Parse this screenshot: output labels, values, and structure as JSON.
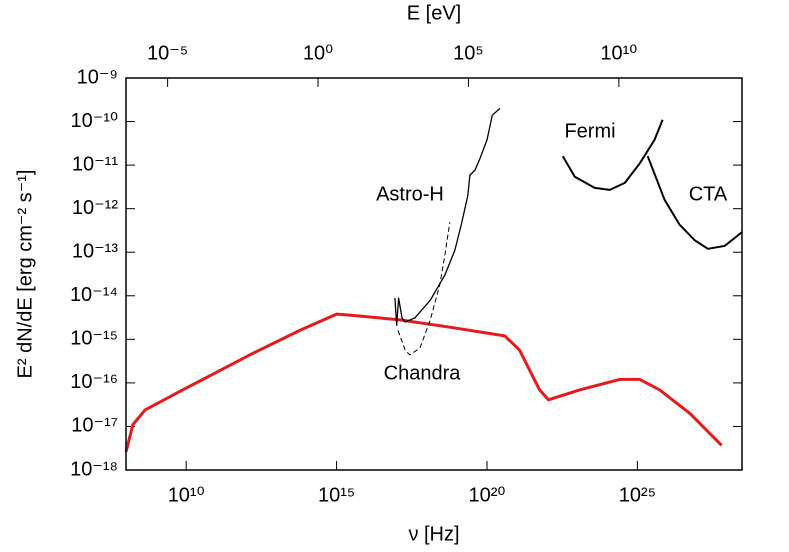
{
  "chart_data": {
    "type": "line",
    "xlabel": "ν [Hz]",
    "ylabel": "E² dN/dE [erg cm⁻² s⁻¹]",
    "x2label": "E [eV]",
    "xscale": "log",
    "yscale": "log",
    "x2scale": "log",
    "xlim": [
      100000000.0,
      3e+28
    ],
    "ylim": [
      1e-18,
      1e-09
    ],
    "x2lim": [
      4.136e-07,
      124000000000000.0
    ],
    "xticks": [
      {
        "value": 10000000000.0,
        "label": "10¹⁰"
      },
      {
        "value": 1000000000000000.0,
        "label": "10¹⁵"
      },
      {
        "value": 1e+20,
        "label": "10²⁰"
      },
      {
        "value": 1e+25,
        "label": "10²⁵"
      }
    ],
    "x2ticks": [
      {
        "value": 1e-05,
        "label": "10⁻⁵"
      },
      {
        "value": 1,
        "label": "10⁰"
      },
      {
        "value": 100000.0,
        "label": "10⁵"
      },
      {
        "value": 10000000000.0,
        "label": "10¹⁰"
      }
    ],
    "yticks": [
      {
        "value": 1e-18,
        "label": "10⁻¹⁸"
      },
      {
        "value": 1e-17,
        "label": "10⁻¹⁷"
      },
      {
        "value": 1e-16,
        "label": "10⁻¹⁶"
      },
      {
        "value": 1e-15,
        "label": "10⁻¹⁵"
      },
      {
        "value": 1e-14,
        "label": "10⁻¹⁴"
      },
      {
        "value": 1e-13,
        "label": "10⁻¹³"
      },
      {
        "value": 1e-12,
        "label": "10⁻¹²"
      },
      {
        "value": 1e-11,
        "label": "10⁻¹¹"
      },
      {
        "value": 1e-10,
        "label": "10⁻¹⁰"
      },
      {
        "value": 1e-09,
        "label": "10⁻⁹"
      }
    ],
    "series": [
      {
        "color": "#e41a1c",
        "line_width": 3,
        "line_style": "solid",
        "x": [
          100000000.0,
          170000000.0,
          430000000.0,
          10000000000.0,
          1300000000000.0,
          60000000000000.0,
          1000000000000000.0,
          2700000000000000.0,
          1.3e+17,
          5.8e+18,
          3.9e+20,
          1.2e+21,
          5.6e+21,
          1.1e+22,
          1.2e+23,
          2.6e+24,
          1.2e+25,
          5.5e+25,
          5.5e+26,
          6.3e+27
        ],
        "values": [
          2.6e-18,
          1.1e-17,
          2.4e-17,
          7.6e-17,
          4.4e-16,
          1.6e-15,
          3.8e-15,
          3.6e-15,
          2.8e-15,
          1.9e-15,
          1.2e-15,
          5.7e-16,
          6.9e-17,
          4.1e-17,
          6.9e-17,
          1.2e-16,
          1.2e-16,
          6.9e-17,
          2e-17,
          3.7e-18
        ]
      },
      {
        "name": "Astro-H",
        "color": "#000000",
        "line_width": 1.3,
        "line_style": "solid",
        "x": [
          8.7e+16,
          1e+17,
          1.15e+17,
          1.5e+17,
          1.9e+17,
          4e+17,
          1.3e+18,
          4e+18,
          8.5e+18,
          1.4e+19,
          2.3e+19,
          2.7e+19,
          4e+19,
          5.8e+19,
          1e+20,
          1.5e+20,
          2.7e+20
        ],
        "values": [
          8.9e-15,
          2.1e-15,
          8.9e-15,
          3.1e-15,
          2.5e-15,
          3.1e-15,
          7.9e-15,
          3e-14,
          1.1e-13,
          4.3e-13,
          2e-12,
          5.9e-12,
          7.7e-12,
          1.4e-11,
          3.8e-11,
          1.4e-10,
          2e-10
        ]
      },
      {
        "name": "Chandra",
        "color": "#000000",
        "line_width": 1,
        "line_style": "dashed",
        "x": [
          1.1e+17,
          1.9e+17,
          2.7e+17,
          5.9e+17,
          1.3e+18,
          2.7e+18,
          4e+18,
          5.8e+18
        ],
        "values": [
          1.6e-15,
          5.7e-16,
          4.4e-16,
          6.3e-16,
          2.8e-15,
          1.8e-14,
          8.7e-14,
          4.9e-13
        ]
      },
      {
        "name": "Fermi",
        "color": "#000000",
        "line_width": 2,
        "line_style": "solid",
        "x": [
          3.3e+22,
          8.3e+22,
          3.8e+23,
          1.2e+24,
          3.8e+24,
          1.2e+25,
          3.7e+25,
          6.9e+25
        ],
        "values": [
          1.6e-11,
          5.4e-12,
          3e-12,
          2.7e-12,
          3.9e-12,
          1.1e-11,
          3.8e-11,
          1.1e-10
        ]
      },
      {
        "name": "CTA",
        "color": "#000000",
        "line_width": 2,
        "line_style": "solid",
        "x": [
          2.2e+25,
          8e+25,
          2.5e+26,
          7.9e+26,
          2.2e+27,
          8e+27,
          3e+28
        ],
        "values": [
          1.6e-11,
          1.6e-12,
          4.3e-13,
          1.9e-13,
          1.2e-13,
          1.4e-13,
          2.9e-13
        ]
      }
    ]
  }
}
